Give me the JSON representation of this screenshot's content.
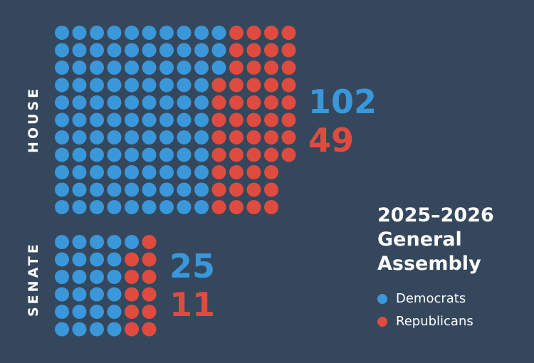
{
  "colors": {
    "background": "#34475c",
    "democrat": "#3a97d9",
    "republican": "#e04b3f",
    "text": "#ffffff"
  },
  "title_lines": [
    "2025–2026",
    "General",
    "Assembly"
  ],
  "legend": {
    "democrats": "Democrats",
    "republicans": "Republicans"
  },
  "chart_data": [
    {
      "type": "waffle",
      "label": "HOUSE",
      "categories": [
        "Democrats",
        "Republicans"
      ],
      "values": [
        102,
        49
      ],
      "labels": [
        "102",
        "49"
      ],
      "grid": {
        "rows": 11,
        "columns": 14
      }
    },
    {
      "type": "waffle",
      "label": "SENATE",
      "categories": [
        "Democrats",
        "Republicans"
      ],
      "values": [
        25,
        11
      ],
      "labels": [
        "25",
        "11"
      ],
      "grid": {
        "rows": 6,
        "columns": 6
      }
    }
  ]
}
